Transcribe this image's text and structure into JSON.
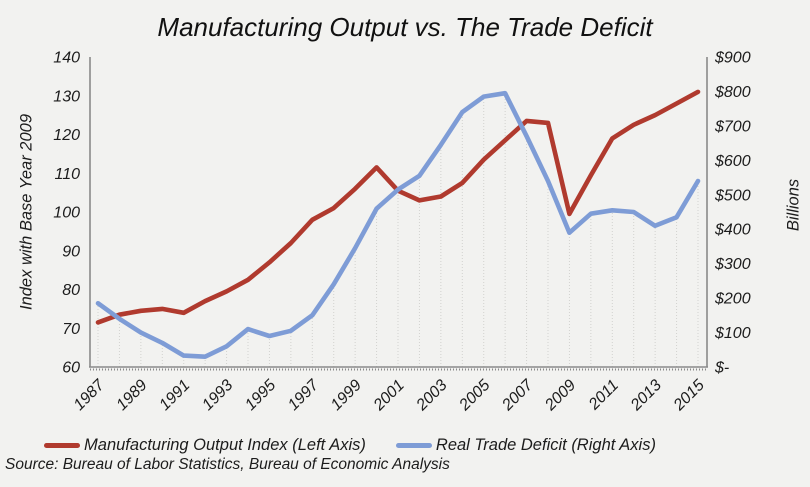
{
  "chart_data": {
    "type": "line",
    "title": "Manufacturing Output vs. The Trade Deficit",
    "x": [
      1987,
      1988,
      1989,
      1990,
      1991,
      1992,
      1993,
      1994,
      1995,
      1996,
      1997,
      1998,
      1999,
      2000,
      2001,
      2002,
      2003,
      2004,
      2005,
      2006,
      2007,
      2008,
      2009,
      2010,
      2011,
      2012,
      2013,
      2014,
      2015
    ],
    "x_tick_labels": [
      "1987",
      "1989",
      "1991",
      "1993",
      "1995",
      "1997",
      "1999",
      "2001",
      "2003",
      "2005",
      "2007",
      "2009",
      "2011",
      "2013",
      "2015"
    ],
    "left_axis": {
      "title": "Index  with Base Year 2009",
      "min": 60,
      "max": 140,
      "tick_labels": [
        "60",
        "70",
        "80",
        "90",
        "100",
        "110",
        "120",
        "130",
        "140"
      ]
    },
    "right_axis": {
      "title": "Billions",
      "min": 0,
      "max": 900,
      "tick_labels": [
        "$-",
        "$100",
        "$200",
        "$300",
        "$400",
        "$500",
        "$600",
        "$700",
        "$800",
        "$900"
      ]
    },
    "series": [
      {
        "name": "Manufacturing Output Index (Left Axis)",
        "axis": "left",
        "color": "#B03A2E",
        "values": [
          71.5,
          73.5,
          74.5,
          75,
          74,
          77,
          79.5,
          82.5,
          87,
          92,
          98,
          101,
          106,
          111.5,
          105.5,
          103,
          104,
          107.5,
          113.5,
          118.5,
          123.5,
          123,
          99.5,
          109.5,
          119,
          122.5,
          125,
          128,
          131
        ]
      },
      {
        "name": "Real Trade Deficit (Right Axis)",
        "axis": "right",
        "color": "#7E9CD6",
        "values": [
          185,
          140,
          100,
          70,
          33,
          30,
          60,
          110,
          90,
          105,
          150,
          240,
          345,
          460,
          515,
          555,
          645,
          740,
          785,
          795,
          670,
          540,
          390,
          445,
          455,
          450,
          410,
          435,
          540
        ]
      }
    ],
    "legend_position": "bottom",
    "grid": "none"
  },
  "source_note": "Source: Bureau of Labor Statistics, Bureau of Economic Analysis",
  "colors": {
    "background": "#F2F2F0",
    "axis_line": "#8A8A8A",
    "dropline": "#D2D2CF",
    "text": "#1C1C1C",
    "series_red": "#B03A2E",
    "series_blue": "#7E9CD6"
  }
}
